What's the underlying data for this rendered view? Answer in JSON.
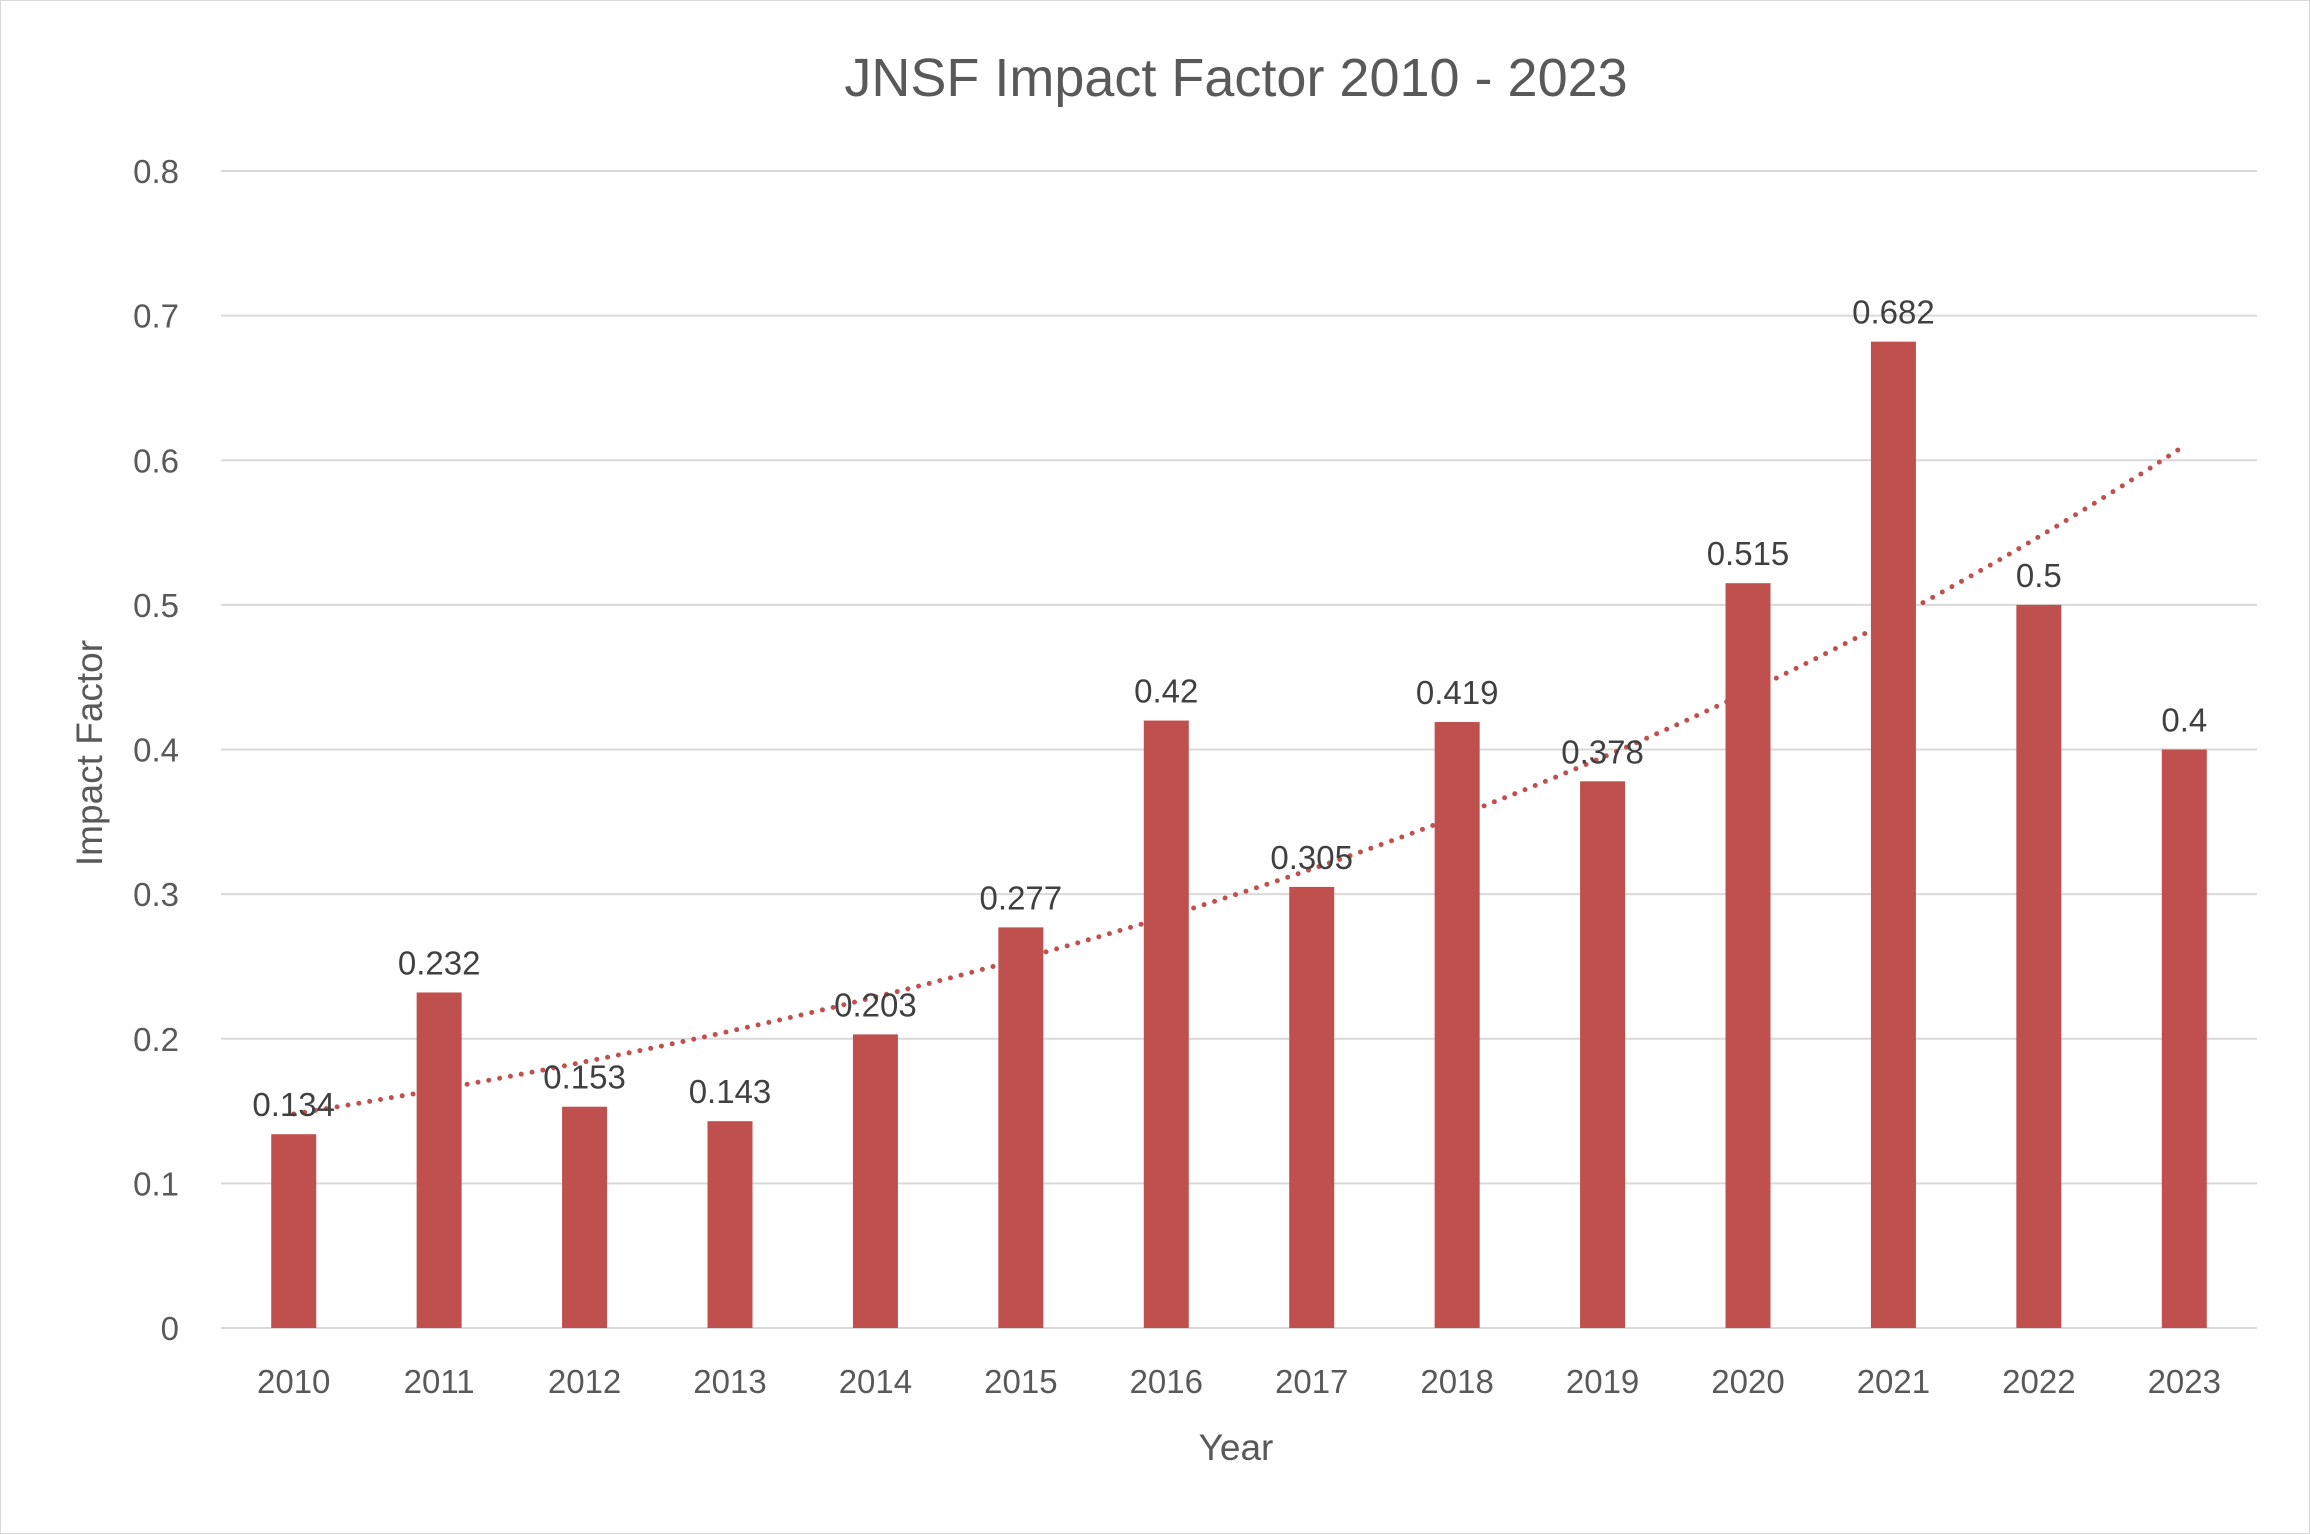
{
  "chart_data": {
    "type": "bar",
    "title": "JNSF Impact Factor 2010 - 2023",
    "xlabel": "Year",
    "ylabel": "Impact Factor",
    "categories": [
      "2010",
      "2011",
      "2012",
      "2013",
      "2014",
      "2015",
      "2016",
      "2017",
      "2018",
      "2019",
      "2020",
      "2021",
      "2022",
      "2023"
    ],
    "values": [
      0.134,
      0.232,
      0.153,
      0.143,
      0.203,
      0.277,
      0.42,
      0.305,
      0.419,
      0.378,
      0.515,
      0.682,
      0.5,
      0.4
    ],
    "data_labels": [
      "0.134",
      "0.232",
      "0.153",
      "0.143",
      "0.203",
      "0.277",
      "0.42",
      "0.305",
      "0.419",
      "0.378",
      "0.515",
      "0.682",
      "0.5",
      "0.4"
    ],
    "ylim": [
      0,
      0.8
    ],
    "yticks": [
      "0",
      "0.1",
      "0.2",
      "0.3",
      "0.4",
      "0.5",
      "0.6",
      "0.7",
      "0.8"
    ],
    "grid": true,
    "legend": "none",
    "bar_color": "#c0504d",
    "trendline": {
      "type": "exponential",
      "style": "dotted",
      "color": "#c0504d",
      "start": 0.148,
      "end": 0.61
    }
  }
}
